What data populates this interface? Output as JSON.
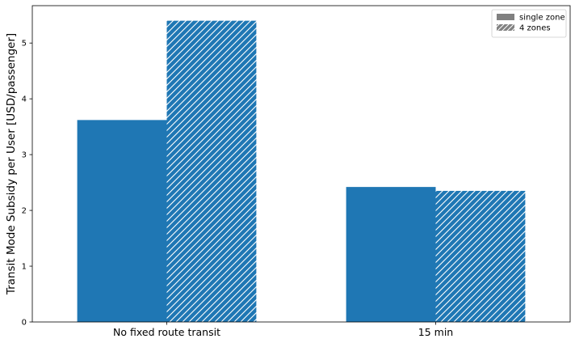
{
  "chart_data": {
    "type": "bar",
    "categories": [
      "No fixed route transit",
      "15 min"
    ],
    "series": [
      {
        "name": "single zone",
        "values": [
          3.62,
          2.42
        ],
        "hatch": false
      },
      {
        "name": "4 zones",
        "values": [
          5.4,
          2.35
        ],
        "hatch": true
      }
    ],
    "ylabel": "Transit Mode Subsidy per User [USD/passenger]",
    "xlabel": "",
    "ylim": [
      0,
      5.67
    ],
    "yticks": [
      0,
      1,
      2,
      3,
      4,
      5
    ],
    "legend_position": "top-right",
    "grid": false,
    "colors": {
      "bar": "#1f77b4",
      "legend_swatch": "#808080",
      "hatch": "#ffffff"
    }
  }
}
